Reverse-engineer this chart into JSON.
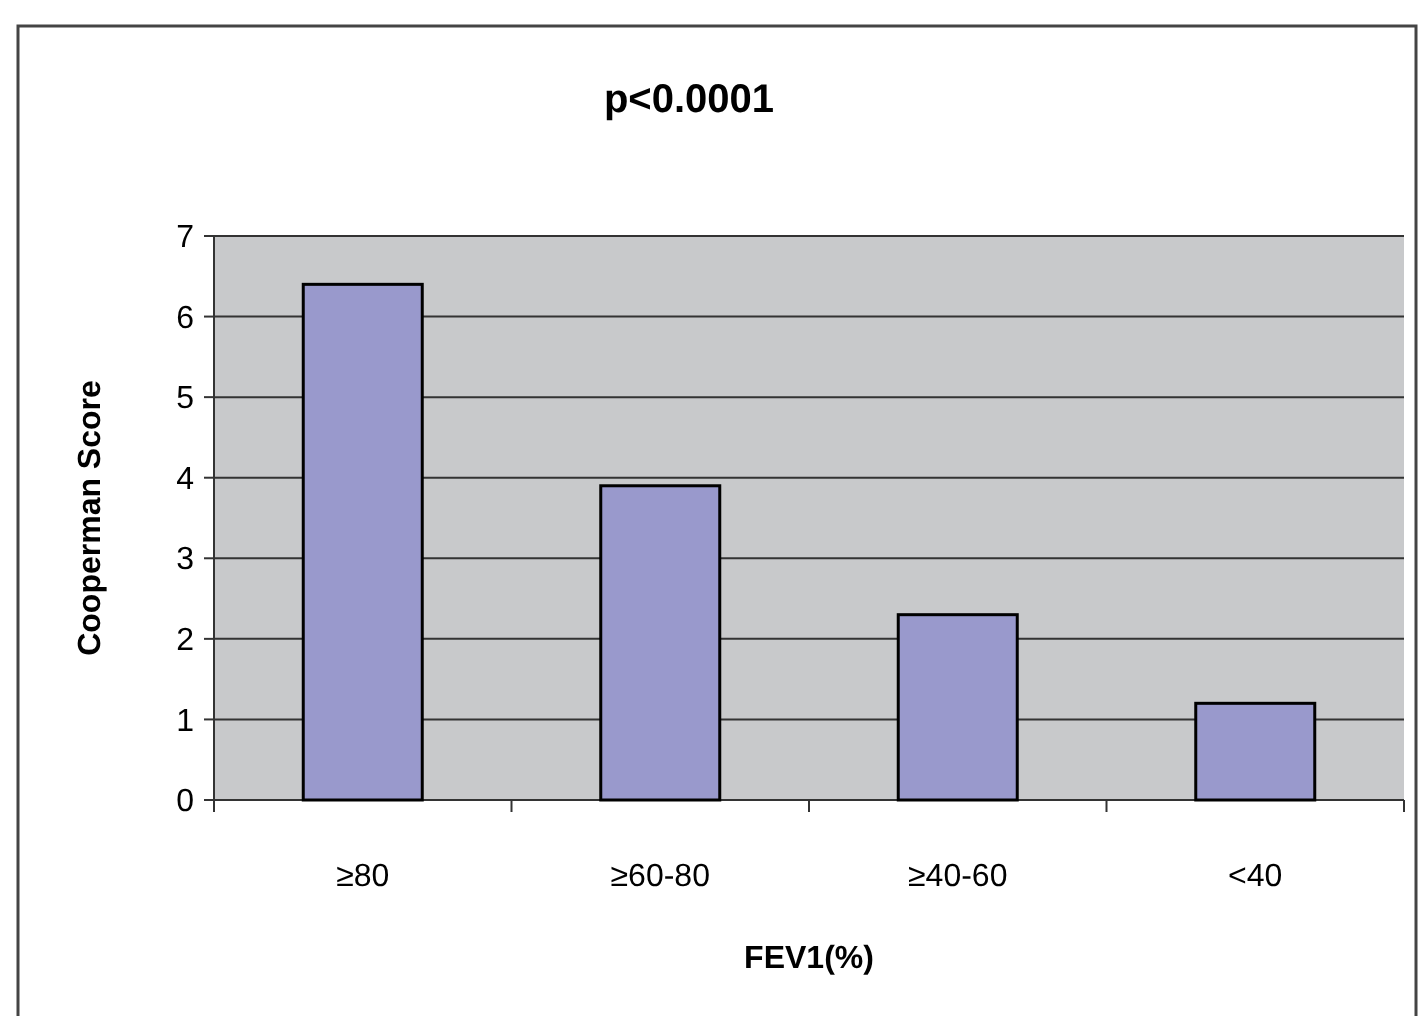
{
  "chart_data": {
    "type": "bar",
    "title": "p<0.0001",
    "xlabel": "FEV1(%)",
    "ylabel": "Cooperman Score",
    "categories": [
      "≥80",
      "≥60-80",
      "≥40-60",
      "<40"
    ],
    "values": [
      6.4,
      3.9,
      2.3,
      1.2
    ],
    "color": "#9999cc",
    "ylim": [
      0,
      7
    ],
    "yticks": [
      0,
      1,
      2,
      3,
      4,
      5,
      6,
      7
    ],
    "grid": "y"
  }
}
